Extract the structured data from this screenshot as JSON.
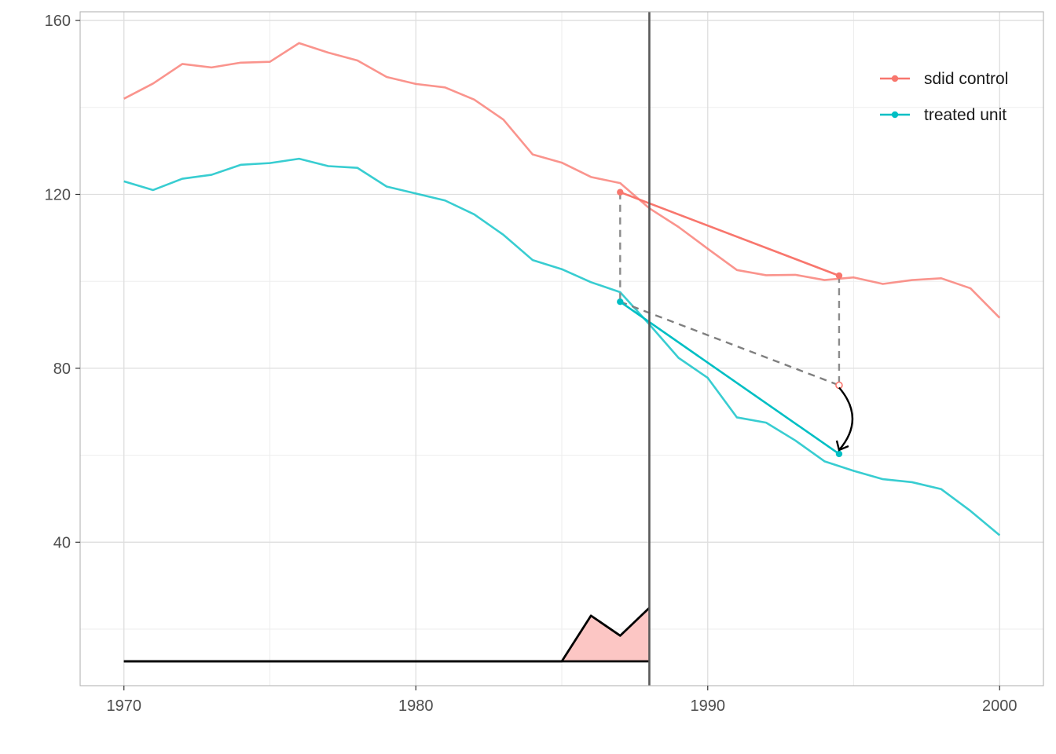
{
  "chart_data": {
    "type": "line",
    "title": "",
    "xlabel": "",
    "ylabel": "",
    "xlim": [
      1968.5,
      2001.5
    ],
    "ylim": [
      7,
      162
    ],
    "x_ticks": [
      1970,
      1980,
      1990,
      2000
    ],
    "y_ticks": [
      40,
      80,
      120,
      160
    ],
    "grid": true,
    "legend_position": "top-right",
    "treatment_year": 1988,
    "x": [
      1970,
      1971,
      1972,
      1973,
      1974,
      1975,
      1976,
      1977,
      1978,
      1979,
      1980,
      1981,
      1982,
      1983,
      1984,
      1985,
      1986,
      1987,
      1988,
      1989,
      1990,
      1991,
      1992,
      1993,
      1994,
      1995,
      1996,
      1997,
      1998,
      1999,
      2000
    ],
    "series": [
      {
        "name": "sdid control",
        "color": "#F8766D",
        "values": [
          142,
          145.5,
          150,
          149.2,
          150.3,
          150.5,
          154.8,
          152.6,
          150.8,
          147,
          145.4,
          144.6,
          141.8,
          137.2,
          129.2,
          127.3,
          124,
          122.6,
          116.8,
          112.5,
          107.5,
          102.6,
          101.4,
          101.5,
          100.3,
          100.9,
          99.4,
          100.3,
          100.7,
          98.4,
          91.6
        ]
      },
      {
        "name": "treated unit",
        "color": "#00BFC4",
        "values": [
          123,
          121,
          123.6,
          124.5,
          126.8,
          127.2,
          128.2,
          126.5,
          126.1,
          121.8,
          120.2,
          118.6,
          115.4,
          110.7,
          104.9,
          102.8,
          99.8,
          97.5,
          90.1,
          82.4,
          77.8,
          68.7,
          67.5,
          63.4,
          58.6,
          56.4,
          54.5,
          53.8,
          52.2,
          47.2,
          41.6
        ]
      }
    ],
    "sdid_segments": [
      {
        "series": "sdid control",
        "x": [
          1987,
          1994.5
        ],
        "y": [
          120.5,
          101.3
        ]
      },
      {
        "series": "treated unit",
        "x": [
          1987,
          1994.5
        ],
        "y": [
          95.3,
          60.3
        ]
      }
    ],
    "counterfactual": {
      "x": [
        1987,
        1994.5
      ],
      "y": [
        95.3,
        76.1
      ]
    },
    "pre_period_weights": {
      "x": [
        1970,
        1985,
        1986,
        1987,
        1988
      ],
      "y": [
        12.6,
        12.6,
        23.1,
        18.5,
        24.9
      ],
      "baseline": 12.6,
      "fill": "#FCC6C4"
    }
  }
}
